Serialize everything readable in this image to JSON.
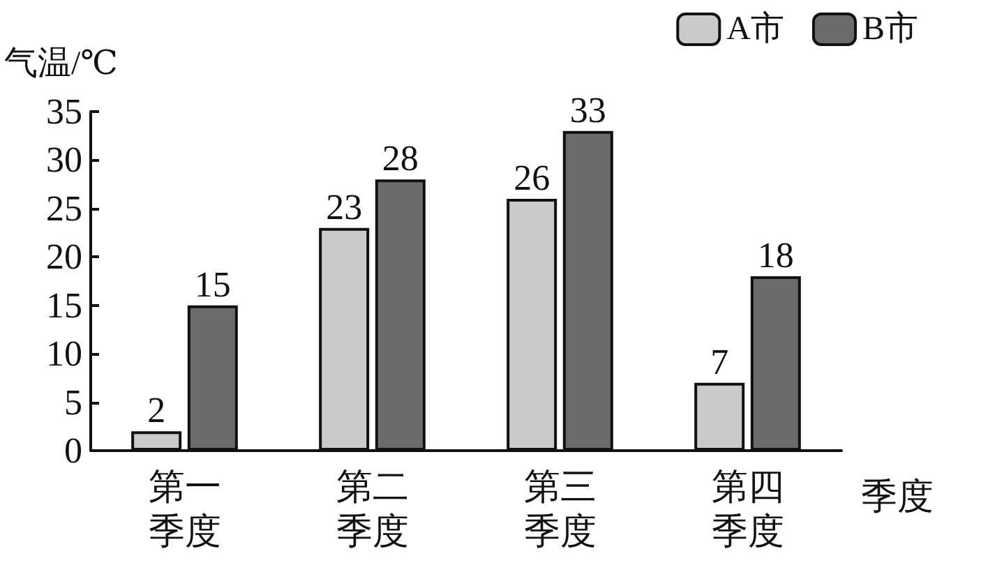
{
  "chart_data": {
    "type": "bar",
    "ylabel": "气温/℃",
    "xlabel": "季度",
    "categories": [
      "第一季度",
      "第二季度",
      "第三季度",
      "第四季度"
    ],
    "series": [
      {
        "name": "A市",
        "color": "#cbcbcb",
        "values": [
          2,
          23,
          26,
          7
        ]
      },
      {
        "name": "B市",
        "color": "#6b6b6b",
        "values": [
          15,
          28,
          33,
          18
        ]
      }
    ],
    "ylim": [
      0,
      35
    ],
    "yticks": [
      0,
      5,
      10,
      15,
      20,
      25,
      30,
      35
    ],
    "grid": false,
    "legend": "top right",
    "data_labels": true
  }
}
